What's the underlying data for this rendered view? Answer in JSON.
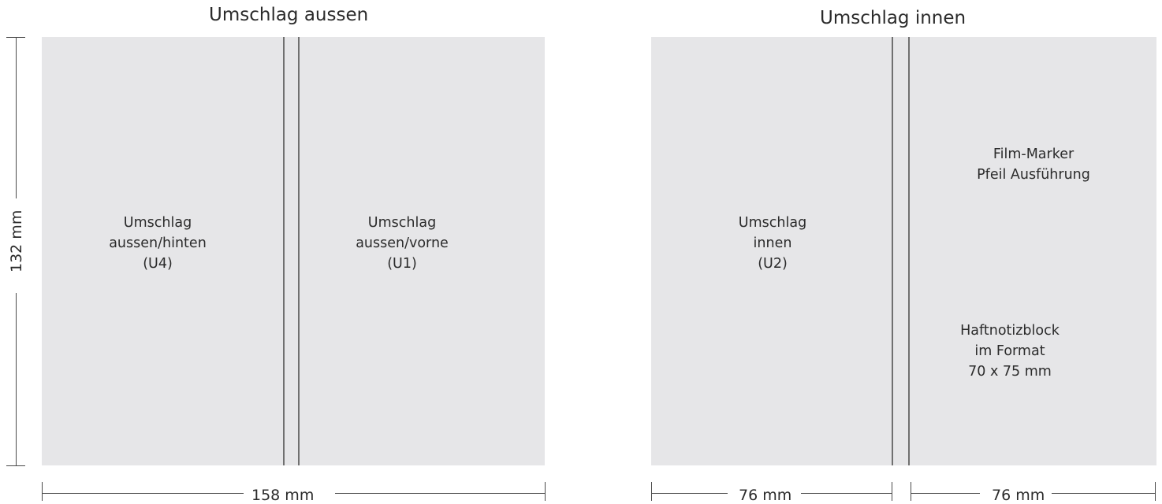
{
  "titles": {
    "outer": "Umschlag aussen",
    "inner": "Umschlag innen"
  },
  "outer": {
    "back": {
      "line1": "Umschlag",
      "line2": "aussen/hinten",
      "line3": "(U4)"
    },
    "front": {
      "line1": "Umschlag",
      "line2": "aussen/vorne",
      "line3": "(U1)"
    }
  },
  "inner": {
    "left": {
      "line1": "Umschlag",
      "line2": "innen",
      "line3": "(U2)"
    },
    "right_top": {
      "line1": "Film-Marker",
      "line2": "Pfeil Ausführung"
    },
    "right_bottom": {
      "line1": "Haftnotizblock",
      "line2": "im Format",
      "line3": "70 x 75 mm"
    }
  },
  "dimensions": {
    "height": "132 mm",
    "outer_width": "158 mm",
    "inner_left_width": "76 mm",
    "inner_right_width": "76 mm"
  }
}
